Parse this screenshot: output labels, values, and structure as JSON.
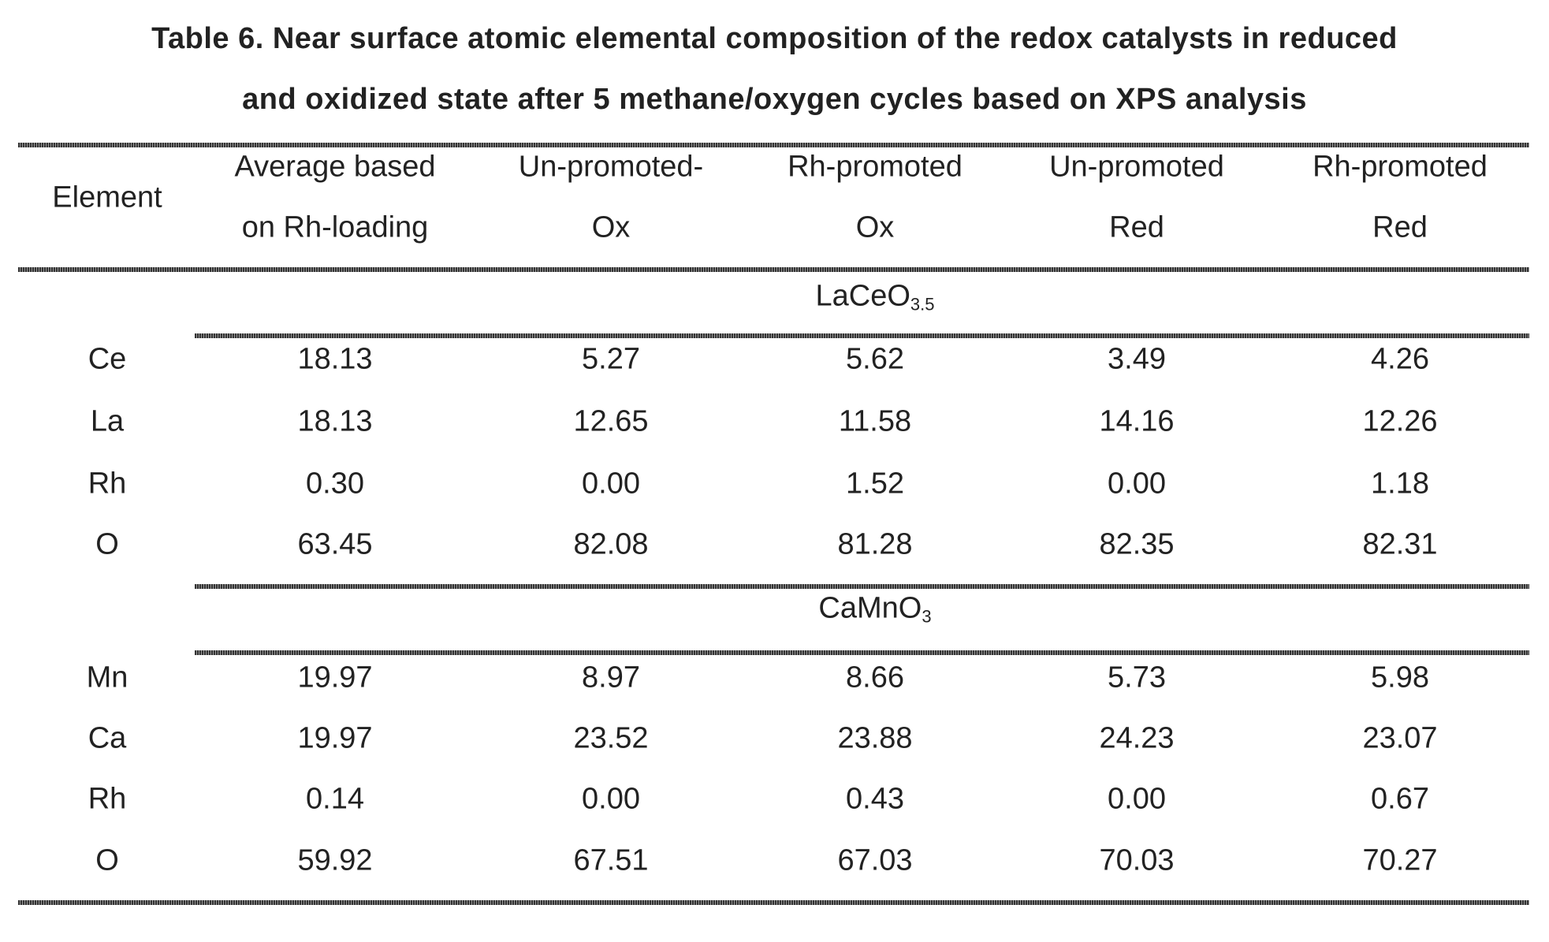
{
  "title": {
    "line1": "Table 6. Near surface atomic elemental composition of the redox catalysts in reduced",
    "line2": "and oxidized state after 5 methane/oxygen cycles based on XPS analysis"
  },
  "columns": [
    {
      "line1": "Element",
      "line2": ""
    },
    {
      "line1": "Average based",
      "line2": "on Rh-loading"
    },
    {
      "line1": "Un-promoted-",
      "line2": "Ox"
    },
    {
      "line1": "Rh-promoted",
      "line2": "Ox"
    },
    {
      "line1": "Un-promoted",
      "line2": "Red"
    },
    {
      "line1": "Rh-promoted",
      "line2": "Red"
    }
  ],
  "groups": [
    {
      "name": "LaCeO",
      "subscript": "3.5",
      "rows": [
        [
          "Ce",
          "18.13",
          "5.27",
          "5.62",
          "3.49",
          "4.26"
        ],
        [
          "La",
          "18.13",
          "12.65",
          "11.58",
          "14.16",
          "12.26"
        ],
        [
          "Rh",
          "0.30",
          "0.00",
          "1.52",
          "0.00",
          "1.18"
        ],
        [
          "O",
          "63.45",
          "82.08",
          "81.28",
          "82.35",
          "82.31"
        ]
      ]
    },
    {
      "name": "CaMnO",
      "subscript": "3",
      "rows": [
        [
          "Mn",
          "19.97",
          "8.97",
          "8.66",
          "5.73",
          "5.98"
        ],
        [
          "Ca",
          "19.97",
          "23.52",
          "23.88",
          "24.23",
          "23.07"
        ],
        [
          "Rh",
          "0.14",
          "0.00",
          "0.43",
          "0.00",
          "0.67"
        ],
        [
          "O",
          "59.92",
          "67.51",
          "67.03",
          "70.03",
          "70.27"
        ]
      ]
    }
  ]
}
